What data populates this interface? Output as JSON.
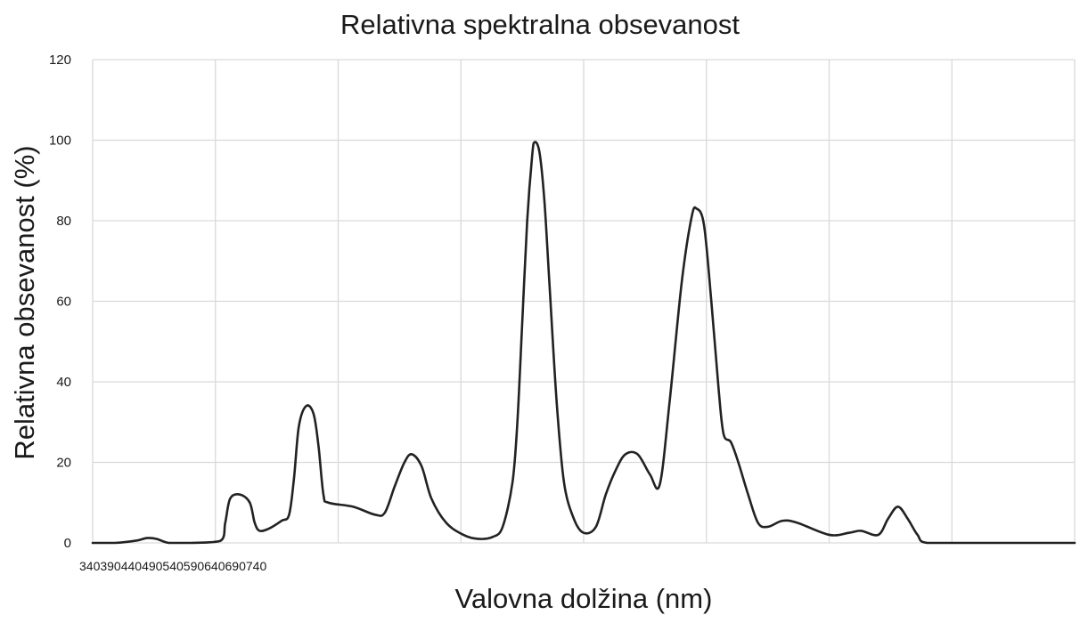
{
  "chart_data": {
    "type": "line",
    "title": "Relativna spektralna obsevanost",
    "xlabel": "Valovna dolžina (nm)",
    "ylabel": "Relativna obsevanost (%)",
    "x_tick_labels": "340390440490540590640690740",
    "ylim": [
      0,
      120
    ],
    "y_ticks": [
      "0",
      "20",
      "40",
      "60",
      "80",
      "100",
      "120"
    ],
    "xlim": [
      340,
      740
    ],
    "grid": true,
    "line_color": "#222222",
    "grid_color": "#d9d9d9",
    "series": [
      {
        "points": [
          [
            340,
            0
          ],
          [
            349,
            0
          ],
          [
            358,
            0.6
          ],
          [
            362,
            1.2
          ],
          [
            366,
            1.0
          ],
          [
            371,
            0
          ],
          [
            380,
            0
          ],
          [
            392,
            0.5
          ],
          [
            394,
            5
          ],
          [
            396,
            11
          ],
          [
            400,
            12
          ],
          [
            404,
            10
          ],
          [
            406,
            5
          ],
          [
            408,
            3
          ],
          [
            412,
            3.6
          ],
          [
            417,
            5.5
          ],
          [
            420,
            7
          ],
          [
            422,
            16
          ],
          [
            424,
            29
          ],
          [
            427,
            34
          ],
          [
            430,
            32
          ],
          [
            432,
            24
          ],
          [
            434,
            12
          ],
          [
            436,
            10
          ],
          [
            446,
            9
          ],
          [
            455,
            7
          ],
          [
            459,
            7.5
          ],
          [
            463,
            14
          ],
          [
            467,
            20
          ],
          [
            470,
            22
          ],
          [
            474,
            19
          ],
          [
            478,
            11
          ],
          [
            484,
            5
          ],
          [
            491,
            2
          ],
          [
            497,
            1
          ],
          [
            503,
            1.5
          ],
          [
            507,
            4
          ],
          [
            511,
            15
          ],
          [
            513,
            30
          ],
          [
            515,
            55
          ],
          [
            517,
            80
          ],
          [
            519,
            96
          ],
          [
            520,
            99.5
          ],
          [
            522,
            97
          ],
          [
            524,
            85
          ],
          [
            526,
            65
          ],
          [
            529,
            35
          ],
          [
            532,
            15
          ],
          [
            536,
            6
          ],
          [
            540,
            2.5
          ],
          [
            545,
            4
          ],
          [
            549,
            12
          ],
          [
            553,
            18
          ],
          [
            557,
            22
          ],
          [
            562,
            22
          ],
          [
            567,
            17
          ],
          [
            571,
            14.5
          ],
          [
            575,
            35
          ],
          [
            580,
            65
          ],
          [
            584,
            81
          ],
          [
            586,
            83
          ],
          [
            589,
            79
          ],
          [
            592,
            60
          ],
          [
            595,
            38
          ],
          [
            597,
            27
          ],
          [
            600,
            25
          ],
          [
            603,
            20
          ],
          [
            607,
            12
          ],
          [
            611,
            5
          ],
          [
            615,
            4
          ],
          [
            621,
            5.5
          ],
          [
            627,
            5
          ],
          [
            640,
            2
          ],
          [
            648,
            2.5
          ],
          [
            653,
            3
          ],
          [
            660,
            2
          ],
          [
            664,
            6
          ],
          [
            668,
            9
          ],
          [
            672,
            6
          ],
          [
            676,
            2
          ],
          [
            680,
            0
          ],
          [
            700,
            0
          ],
          [
            740,
            0
          ]
        ]
      }
    ]
  }
}
